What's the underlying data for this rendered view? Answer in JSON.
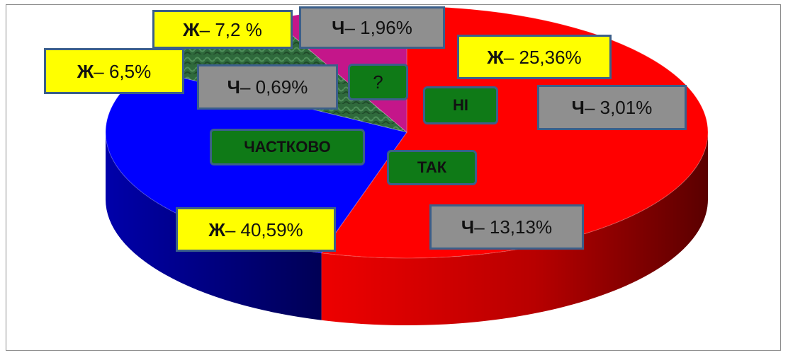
{
  "chart_data": {
    "type": "pie",
    "title": "",
    "categories": [
      "ТАК",
      "НІ",
      "?",
      "ЧАСТКОВО"
    ],
    "series": [
      {
        "values": [
          40.59,
          25.36,
          7.2,
          6.5
        ]
      },
      {
        "values": [
          13.13,
          3.01,
          1.96,
          0.69
        ]
      }
    ],
    "labels": {
      "tak_w": {
        "prefix": "Ж",
        "value": " – 40,59%"
      },
      "tak_m": {
        "prefix": "Ч",
        "value": " – 13,13%"
      },
      "ni_w": {
        "prefix": "Ж",
        "value": " – 25,36%"
      },
      "ni_m": {
        "prefix": "Ч",
        "value": " – 3,01%"
      },
      "q_w": {
        "prefix": "Ж",
        "value": " – 7,2 %"
      },
      "q_m": {
        "prefix": "Ч",
        "value": " – 1,96%"
      },
      "part_w": {
        "prefix": "Ж",
        "value": " – 6,5%"
      },
      "part_m": {
        "prefix": "Ч",
        "value": " – 0,69%"
      }
    },
    "colors": {
      "ТАК": "#ff0000",
      "НІ": "#0000ff",
      "?": "#2e5e3a",
      "ЧАСТКОВО": "#c4168a",
      "women_label": "#ffff00",
      "men_label": "#8f8f8f",
      "category_label": "#0f7a17"
    },
    "slices": [
      {
        "category": "ТАК",
        "value": 53.72
      },
      {
        "category": "НІ",
        "value": 28.37
      },
      {
        "category": "?",
        "value": 9.16
      },
      {
        "category": "ЧАСТКОВО",
        "value": 7.19
      }
    ]
  }
}
